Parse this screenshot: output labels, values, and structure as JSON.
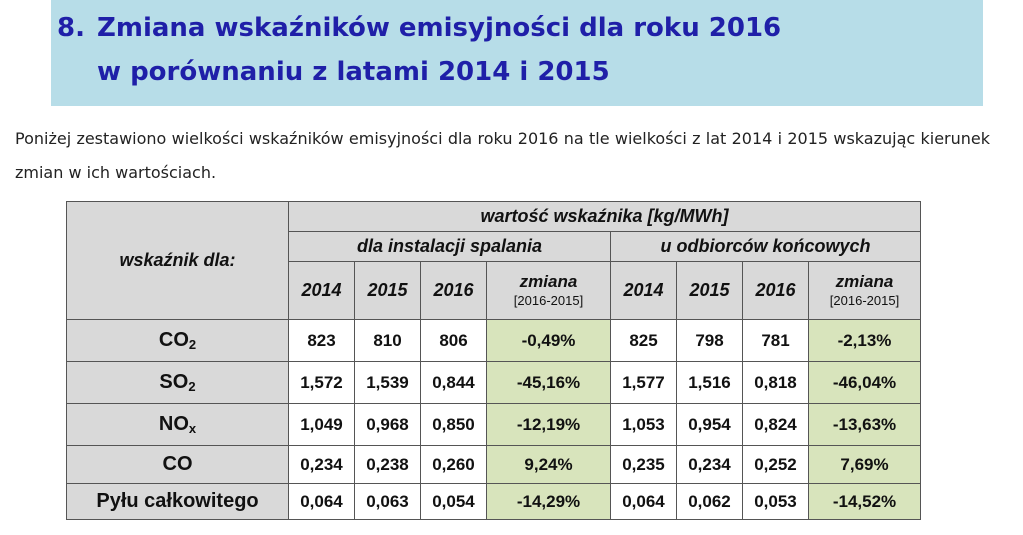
{
  "heading": {
    "number": "8.",
    "line1": "Zmiana wskaźników emisyjności dla roku 2016",
    "line2": "w porównaniu z latami 2014 i 2015"
  },
  "intro": "Poniżej zestawiono wielkości wskaźników emisyjności dla roku 2016 na tle wielkości z lat 2014 i 2015 wskazując kierunek zmian w ich wartościach.",
  "table": {
    "row_header": "wskaźnik dla:",
    "group_header": "wartość wskaźnika [kg/MWh]",
    "sub_groups": [
      "dla instalacji spalania",
      "u odbiorców końcowych"
    ],
    "years": [
      "2014",
      "2015",
      "2016"
    ],
    "change_label": "zmiana",
    "change_range": "[2016-2015]",
    "rows": [
      {
        "label": "CO",
        "sub": "2",
        "inst": [
          "823",
          "810",
          "806"
        ],
        "inst_change": "-0,49%",
        "end": [
          "825",
          "798",
          "781"
        ],
        "end_change": "-2,13%"
      },
      {
        "label": "SO",
        "sub": "2",
        "inst": [
          "1,572",
          "1,539",
          "0,844"
        ],
        "inst_change": "-45,16%",
        "end": [
          "1,577",
          "1,516",
          "0,818"
        ],
        "end_change": "-46,04%"
      },
      {
        "label": "NO",
        "sub": "x",
        "inst": [
          "1,049",
          "0,968",
          "0,850"
        ],
        "inst_change": "-12,19%",
        "end": [
          "1,053",
          "0,954",
          "0,824"
        ],
        "end_change": "-13,63%"
      },
      {
        "label": "CO",
        "sub": "",
        "inst": [
          "0,234",
          "0,238",
          "0,260"
        ],
        "inst_change": "9,24%",
        "end": [
          "0,235",
          "0,234",
          "0,252"
        ],
        "end_change": "7,69%"
      },
      {
        "label": "Pyłu całkowitego",
        "sub": "",
        "inst": [
          "0,064",
          "0,063",
          "0,054"
        ],
        "inst_change": "-14,29%",
        "end": [
          "0,064",
          "0,062",
          "0,053"
        ],
        "end_change": "-14,52%"
      }
    ]
  },
  "colors": {
    "banner": "#b7dde8",
    "heading_text": "#1f1fa8",
    "header_fill": "#d9d9d9",
    "change_fill": "#d8e4bc"
  }
}
